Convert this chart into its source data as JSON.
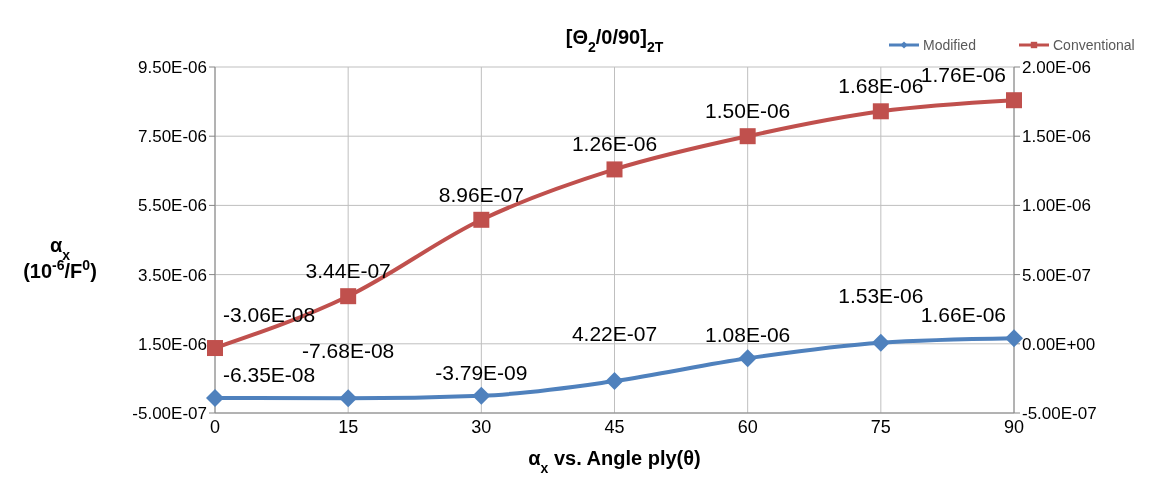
{
  "chart_data": {
    "type": "line",
    "title": "[Θ$_{2}$/0/90]$_{2T}$",
    "xlabel": "α$_{x}$ vs. Angle ply(θ)",
    "ylabel": "α$_{x}$ (10$^{-6}$/F$^{0}$)",
    "x": [
      0,
      15,
      30,
      45,
      60,
      75,
      90
    ],
    "xlim": [
      0,
      90
    ],
    "xticks": [
      0,
      15,
      30,
      45,
      60,
      75,
      90
    ],
    "ylim": [
      -5e-07,
      9.5e-06
    ],
    "yticks": [
      {
        "value": -5e-07,
        "label": "-5.00E-07"
      },
      {
        "value": 1.5e-06,
        "label": "1.50E-06"
      },
      {
        "value": 3.5e-06,
        "label": "3.50E-06"
      },
      {
        "value": 5.5e-06,
        "label": "5.50E-06"
      },
      {
        "value": 7.5e-06,
        "label": "7.50E-06"
      },
      {
        "value": 9.5e-06,
        "label": "9.50E-06"
      }
    ],
    "y2lim": [
      -5e-07,
      2e-06
    ],
    "y2ticks": [
      {
        "value": -5e-07,
        "label": "-5.00E-07"
      },
      {
        "value": 0,
        "label": "0.00E+00"
      },
      {
        "value": 5e-07,
        "label": "5.00E-07"
      },
      {
        "value": 1e-06,
        "label": "1.00E-06"
      },
      {
        "value": 1.5e-06,
        "label": "1.50E-06"
      },
      {
        "value": 2e-06,
        "label": "2.00E-06"
      }
    ],
    "series": [
      {
        "name": "Modified",
        "color": "#4f81bd",
        "marker": "diamond",
        "values": [
          -6.35e-08,
          -7.68e-08,
          -3.79e-09,
          4.22e-07,
          1.08e-06,
          1.53e-06,
          1.66e-06
        ],
        "value_labels": [
          "-6.35E-08",
          "-7.68E-08",
          "-3.79E-09",
          "4.22E-07",
          "1.08E-06",
          "1.53E-06",
          "1.66E-06"
        ]
      },
      {
        "name": "Conventional",
        "color": "#c0504d",
        "marker": "square",
        "axis": "y2",
        "values": [
          -3.06e-08,
          3.44e-07,
          8.96e-07,
          1.26e-06,
          1.5e-06,
          1.68e-06,
          1.76e-06
        ],
        "value_labels": [
          "-3.06E-08",
          "3.44E-07",
          "8.96E-07",
          "1.26E-06",
          "1.50E-06",
          "1.68E-06",
          "1.76E-06"
        ]
      }
    ],
    "grid": true,
    "legend": "top right"
  }
}
